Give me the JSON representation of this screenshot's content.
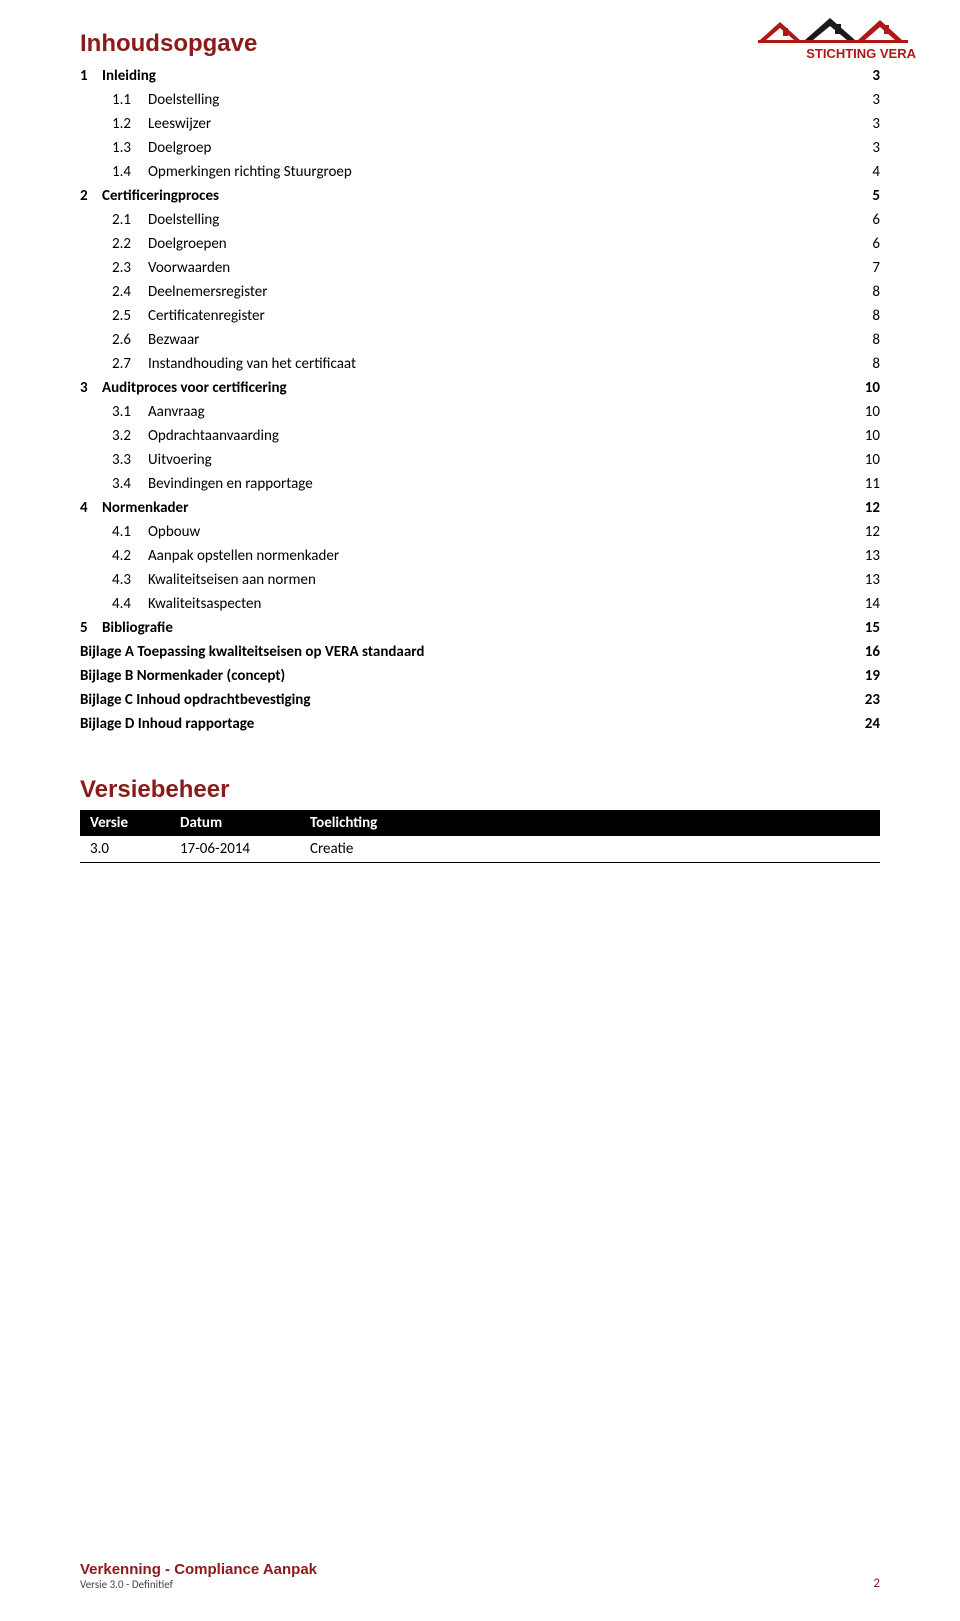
{
  "logo": {
    "text_top": "STICHTING VERA",
    "color_primary": "#b01818",
    "color_dark": "#1a1a1a"
  },
  "headings": {
    "toc": "Inhoudsopgave",
    "version": "Versiebeheer"
  },
  "toc": [
    {
      "level": 0,
      "num": "1",
      "label": "Inleiding",
      "page": "3"
    },
    {
      "level": 1,
      "num": "1.1",
      "label": "Doelstelling",
      "page": "3"
    },
    {
      "level": 1,
      "num": "1.2",
      "label": "Leeswijzer",
      "page": "3"
    },
    {
      "level": 1,
      "num": "1.3",
      "label": "Doelgroep",
      "page": "3"
    },
    {
      "level": 1,
      "num": "1.4",
      "label": "Opmerkingen richting Stuurgroep",
      "page": "4"
    },
    {
      "level": 0,
      "num": "2",
      "label": "Certificeringproces",
      "page": "5"
    },
    {
      "level": 1,
      "num": "2.1",
      "label": "Doelstelling",
      "page": "6"
    },
    {
      "level": 1,
      "num": "2.2",
      "label": "Doelgroepen",
      "page": "6"
    },
    {
      "level": 1,
      "num": "2.3",
      "label": "Voorwaarden",
      "page": "7"
    },
    {
      "level": 1,
      "num": "2.4",
      "label": "Deelnemersregister",
      "page": "8"
    },
    {
      "level": 1,
      "num": "2.5",
      "label": "Certificatenregister",
      "page": "8"
    },
    {
      "level": 1,
      "num": "2.6",
      "label": "Bezwaar",
      "page": "8"
    },
    {
      "level": 1,
      "num": "2.7",
      "label": "Instandhouding van het certificaat",
      "page": "8"
    },
    {
      "level": 0,
      "num": "3",
      "label": "Auditproces voor certificering",
      "page": "10"
    },
    {
      "level": 1,
      "num": "3.1",
      "label": "Aanvraag",
      "page": "10"
    },
    {
      "level": 1,
      "num": "3.2",
      "label": "Opdrachtaanvaarding",
      "page": "10"
    },
    {
      "level": 1,
      "num": "3.3",
      "label": "Uitvoering",
      "page": "10"
    },
    {
      "level": 1,
      "num": "3.4",
      "label": "Bevindingen en rapportage",
      "page": "11"
    },
    {
      "level": 0,
      "num": "4",
      "label": "Normenkader",
      "page": "12"
    },
    {
      "level": 1,
      "num": "4.1",
      "label": "Opbouw",
      "page": "12"
    },
    {
      "level": 1,
      "num": "4.2",
      "label": "Aanpak opstellen normenkader",
      "page": "13"
    },
    {
      "level": 1,
      "num": "4.3",
      "label": "Kwaliteitseisen aan normen",
      "page": "13"
    },
    {
      "level": 1,
      "num": "4.4",
      "label": "Kwaliteitsaspecten",
      "page": "14"
    },
    {
      "level": 0,
      "num": "5",
      "label": "Bibliografie",
      "page": "15"
    },
    {
      "level": 0,
      "num": "",
      "label": "Bijlage A Toepassing kwaliteitseisen op VERA standaard",
      "page": "16"
    },
    {
      "level": 0,
      "num": "",
      "label": "Bijlage B Normenkader (concept)",
      "page": "19"
    },
    {
      "level": 0,
      "num": "",
      "label": "Bijlage C Inhoud opdrachtbevestiging",
      "page": "23"
    },
    {
      "level": 0,
      "num": "",
      "label": "Bijlage D Inhoud rapportage",
      "page": "24"
    }
  ],
  "version_table": {
    "headers": [
      "Versie",
      "Datum",
      "Toelichting"
    ],
    "rows": [
      [
        "3.0",
        "17-06-2014",
        "Creatie"
      ]
    ]
  },
  "footer": {
    "title": "Verkenning - Compliance Aanpak",
    "sub": "Versie 3.0 - Definitief",
    "page": "2"
  }
}
